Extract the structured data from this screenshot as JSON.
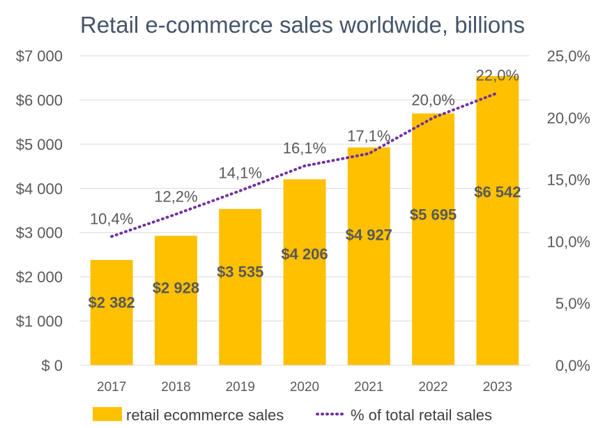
{
  "chart_data": {
    "type": "bar",
    "title": "Retail e-commerce sales worldwide, billions",
    "categories": [
      "2017",
      "2018",
      "2019",
      "2020",
      "2021",
      "2022",
      "2023"
    ],
    "series": [
      {
        "name": "retail ecommerce sales",
        "type": "bar",
        "axis": "left",
        "color": "#ffc000",
        "values": [
          2382,
          2928,
          3535,
          4206,
          4927,
          5695,
          6542
        ],
        "labels": [
          "$2 382",
          "$2 928",
          "$3 535",
          "$4 206",
          "$4 927",
          "$5 695",
          "$6 542"
        ]
      },
      {
        "name": "% of total retail sales",
        "type": "line",
        "style": "dotted",
        "axis": "right",
        "color": "#7030a0",
        "values": [
          10.4,
          12.2,
          14.1,
          16.1,
          17.1,
          20.0,
          22.0
        ],
        "labels": [
          "10,4%",
          "12,2%",
          "14,1%",
          "16,1%",
          "17,1%",
          "20,0%",
          "22,0%"
        ]
      }
    ],
    "y_left": {
      "ylim": [
        0,
        7000
      ],
      "ticks": [
        0,
        1000,
        2000,
        3000,
        4000,
        5000,
        6000,
        7000
      ],
      "tick_labels": [
        "$ 0",
        "$1 000",
        "$2 000",
        "$3 000",
        "$4 000",
        "$5 000",
        "$6 000",
        "$7 000"
      ]
    },
    "y_right": {
      "ylim": [
        0,
        25
      ],
      "ticks": [
        0,
        5,
        10,
        15,
        20,
        25
      ],
      "tick_labels": [
        "0,0%",
        "5,0%",
        "10,0%",
        "15,0%",
        "20,0%",
        "25,0%"
      ]
    },
    "grid": true,
    "legend_position": "bottom"
  }
}
